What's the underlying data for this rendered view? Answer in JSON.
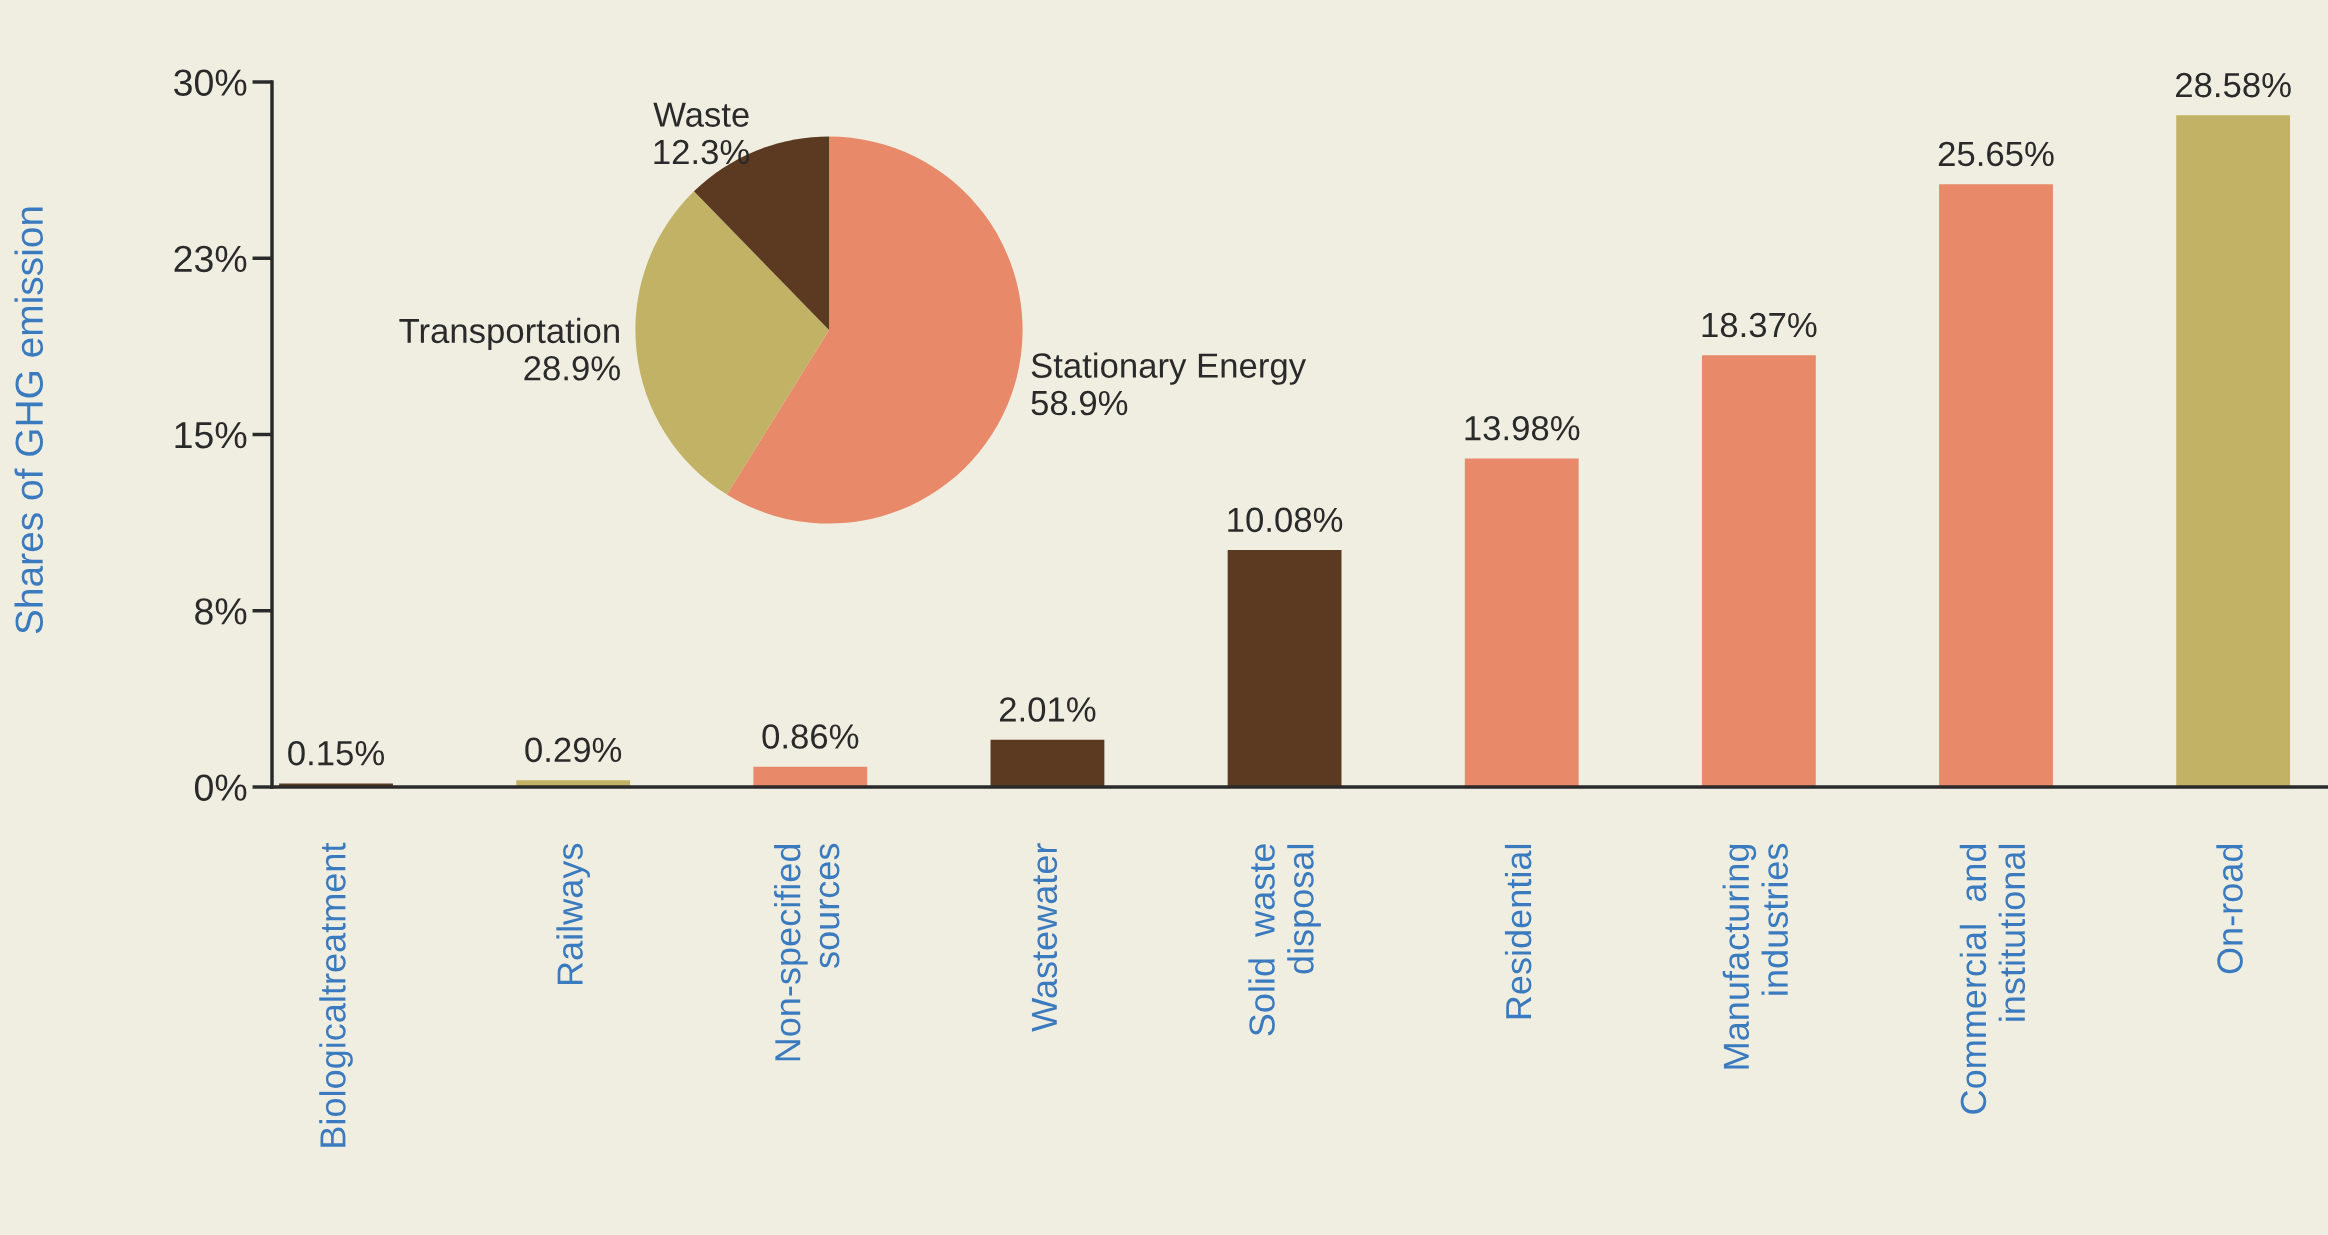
{
  "chart_data": [
    {
      "type": "bar",
      "ylabel": "Shares of GHG emission",
      "categories": [
        "Biologicaltreatment",
        "Railways",
        "Non-specified\nsources",
        "Wastewater",
        "Solid  waste\ndisposal",
        "Residential",
        "Manufacturing\nindustries",
        "Commercial  and\ninstitutional",
        "On-road"
      ],
      "values": [
        0.15,
        0.29,
        0.86,
        2.01,
        10.08,
        13.98,
        18.37,
        25.65,
        28.58
      ],
      "colors": [
        "#5c3a22",
        "#c2b265",
        "#e8896a",
        "#5c3a22",
        "#5c3a22",
        "#e8896a",
        "#e8896a",
        "#e8896a",
        "#c2b265"
      ],
      "value_labels": [
        "0.15%",
        "0.29%",
        "0.86%",
        "2.01%",
        "10.08%",
        "13.98%",
        "18.37%",
        "25.65%",
        "28.58%"
      ],
      "ylim": [
        0,
        30
      ],
      "yticks": [
        {
          "value": 0,
          "label": "0%"
        },
        {
          "value": 7.5,
          "label": "8%"
        },
        {
          "value": 15,
          "label": "15%"
        },
        {
          "value": 22.5,
          "label": "23%"
        },
        {
          "value": 30,
          "label": "30%"
        }
      ],
      "grid": false,
      "legend": false
    },
    {
      "type": "pie",
      "categories": [
        "Stationary Energy",
        "Transportation",
        "Waste"
      ],
      "values": [
        58.9,
        28.9,
        12.3
      ],
      "colors": [
        "#e8896a",
        "#c2b265",
        "#5c3a22"
      ],
      "value_labels": [
        "58.9%",
        "28.9%",
        "12.3%"
      ],
      "legend": false
    }
  ]
}
